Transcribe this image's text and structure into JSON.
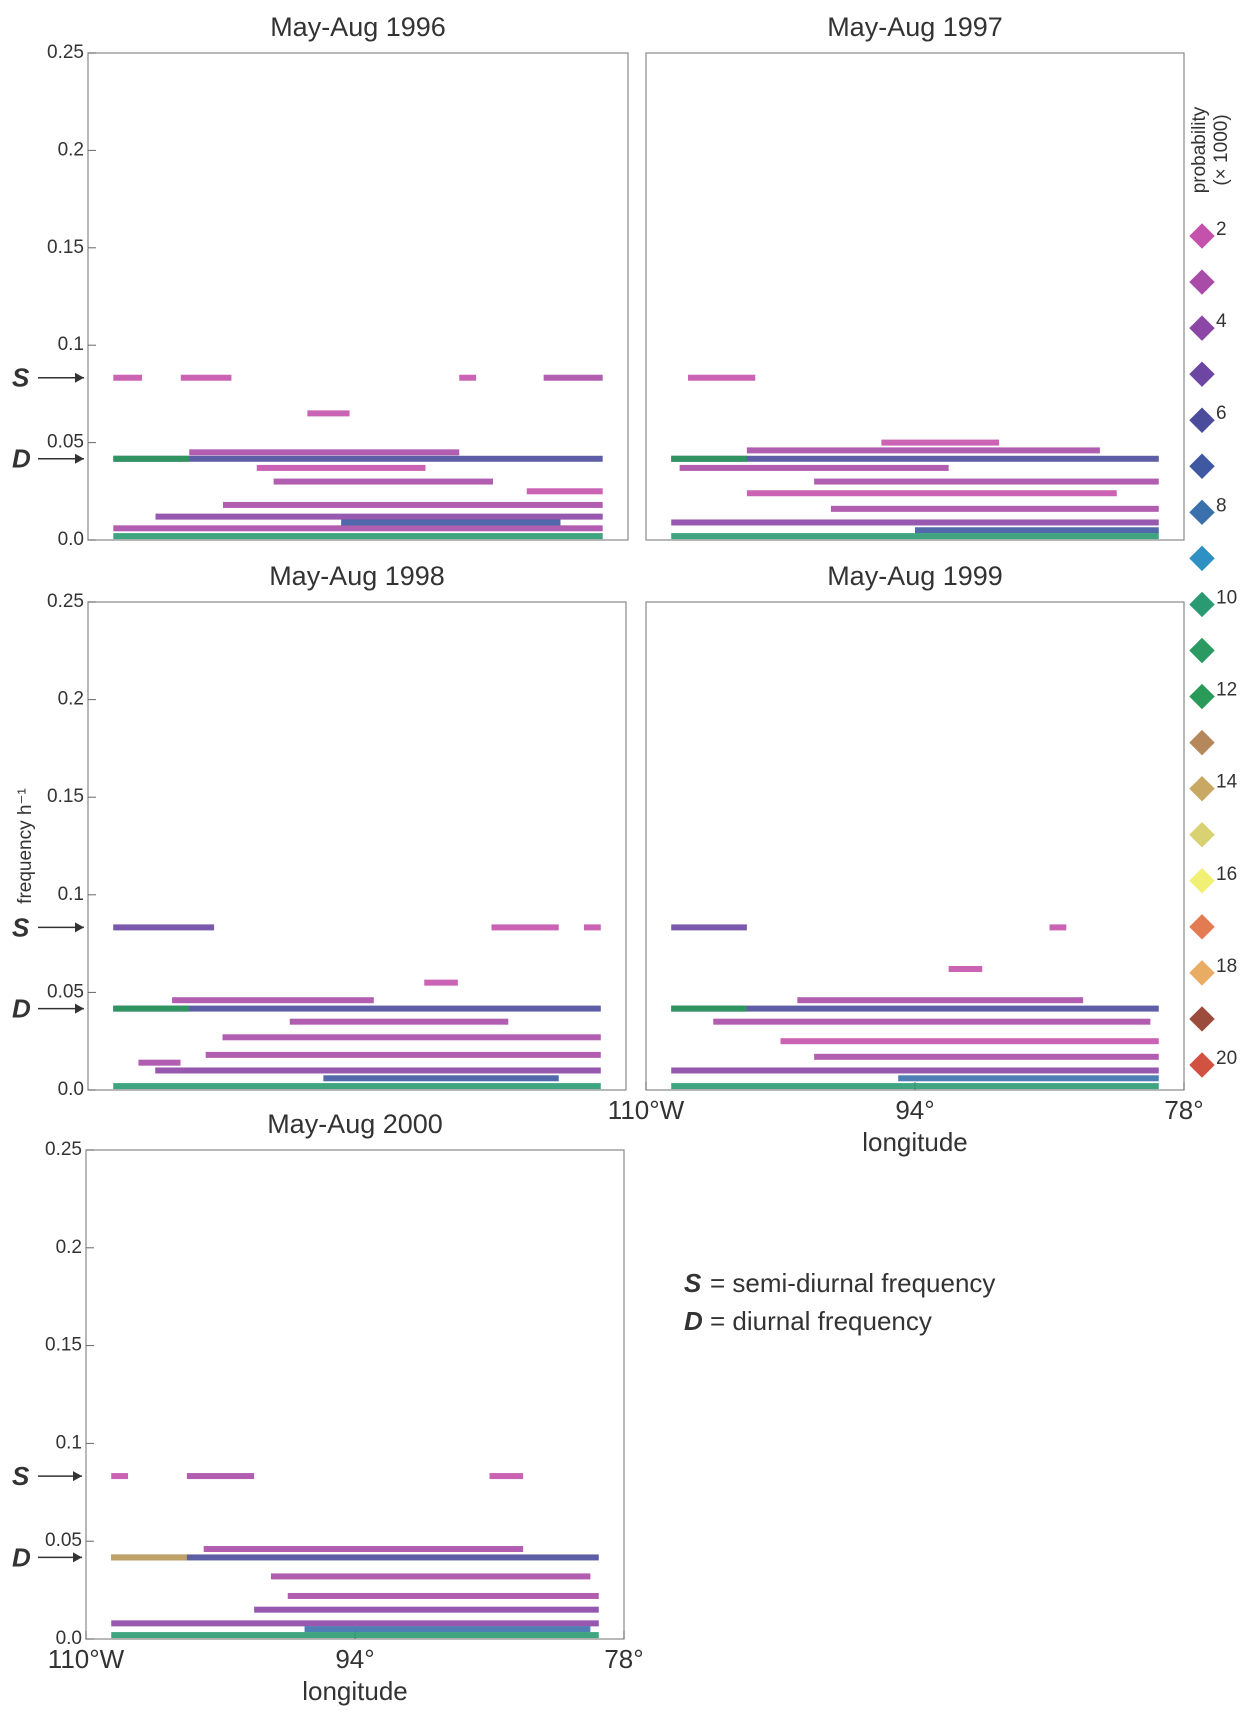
{
  "chart_data": [
    {
      "type": "segments",
      "title": "May-Aug 1996",
      "xlim": [
        -110,
        -78
      ],
      "ylim": [
        0,
        0.25
      ],
      "yticks": [
        {
          "value": 0,
          "label": "0.0"
        },
        0.05,
        0.1,
        0.15,
        0.2,
        0.25
      ],
      "annotations": [
        {
          "text": "S",
          "y": 0.0833
        },
        {
          "text": "D",
          "y": 0.0417
        }
      ],
      "segments": [
        {
          "lon": [
            -108.5,
            -106.8
          ],
          "freq": 0.0833,
          "prob": 2
        },
        {
          "lon": [
            -104.5,
            -101.5
          ],
          "freq": 0.0833,
          "prob": 2
        },
        {
          "lon": [
            -88,
            -87
          ],
          "freq": 0.0833,
          "prob": 2
        },
        {
          "lon": [
            -83,
            -79.5
          ],
          "freq": 0.0833,
          "prob": 3
        },
        {
          "lon": [
            -97,
            -94.5
          ],
          "freq": 0.065,
          "prob": 2
        },
        {
          "lon": [
            -108.5,
            -79.5
          ],
          "freq": 0.0417,
          "prob": 6
        },
        {
          "lon": [
            -108.5,
            -104
          ],
          "freq": 0.0417,
          "prob": 12
        },
        {
          "lon": [
            -104,
            -88
          ],
          "freq": 0.045,
          "prob": 3
        },
        {
          "lon": [
            -100,
            -90
          ],
          "freq": 0.037,
          "prob": 2
        },
        {
          "lon": [
            -99,
            -86
          ],
          "freq": 0.03,
          "prob": 3
        },
        {
          "lon": [
            -84,
            -79.5
          ],
          "freq": 0.025,
          "prob": 2
        },
        {
          "lon": [
            -102,
            -79.5
          ],
          "freq": 0.018,
          "prob": 3
        },
        {
          "lon": [
            -106,
            -79.5
          ],
          "freq": 0.012,
          "prob": 4
        },
        {
          "lon": [
            -108.5,
            -79.5
          ],
          "freq": 0.006,
          "prob": 3
        },
        {
          "lon": [
            -95,
            -82
          ],
          "freq": 0.009,
          "prob": 7
        },
        {
          "lon": [
            -108.5,
            -79.5
          ],
          "freq": 0.002,
          "prob": 10
        }
      ]
    },
    {
      "type": "segments",
      "title": "May-Aug 1997",
      "xlim": [
        -110,
        -78
      ],
      "ylim": [
        0,
        0.25
      ],
      "segments": [
        {
          "lon": [
            -107.5,
            -103.5
          ],
          "freq": 0.0833,
          "prob": 2
        },
        {
          "lon": [
            -108.5,
            -79.5
          ],
          "freq": 0.0417,
          "prob": 6
        },
        {
          "lon": [
            -108.5,
            -104
          ],
          "freq": 0.0417,
          "prob": 12
        },
        {
          "lon": [
            -96,
            -89
          ],
          "freq": 0.05,
          "prob": 2
        },
        {
          "lon": [
            -104,
            -83
          ],
          "freq": 0.046,
          "prob": 3
        },
        {
          "lon": [
            -108,
            -92
          ],
          "freq": 0.037,
          "prob": 3
        },
        {
          "lon": [
            -100,
            -79.5
          ],
          "freq": 0.03,
          "prob": 3
        },
        {
          "lon": [
            -104,
            -82
          ],
          "freq": 0.024,
          "prob": 2
        },
        {
          "lon": [
            -99,
            -79.5
          ],
          "freq": 0.016,
          "prob": 3
        },
        {
          "lon": [
            -108.5,
            -79.5
          ],
          "freq": 0.009,
          "prob": 4
        },
        {
          "lon": [
            -94,
            -79.5
          ],
          "freq": 0.005,
          "prob": 7
        },
        {
          "lon": [
            -108.5,
            -79.5
          ],
          "freq": 0.002,
          "prob": 10
        }
      ]
    },
    {
      "type": "segments",
      "title": "May-Aug 1998",
      "xlim": [
        -110,
        -78
      ],
      "ylim": [
        0,
        0.25
      ],
      "yticks": [
        {
          "value": 0,
          "label": "0.0"
        },
        0.05,
        0.1,
        0.15,
        0.2,
        0.25
      ],
      "ylabel": "frequency h⁻¹",
      "annotations": [
        {
          "text": "S",
          "y": 0.0833
        },
        {
          "text": "D",
          "y": 0.0417
        }
      ],
      "segments": [
        {
          "lon": [
            -108.5,
            -102.5
          ],
          "freq": 0.0833,
          "prob": 5
        },
        {
          "lon": [
            -86,
            -82
          ],
          "freq": 0.0833,
          "prob": 2
        },
        {
          "lon": [
            -80.5,
            -79.5
          ],
          "freq": 0.0833,
          "prob": 2
        },
        {
          "lon": [
            -90,
            -88
          ],
          "freq": 0.055,
          "prob": 2
        },
        {
          "lon": [
            -108.5,
            -79.5
          ],
          "freq": 0.0417,
          "prob": 6
        },
        {
          "lon": [
            -108.5,
            -104
          ],
          "freq": 0.0417,
          "prob": 12
        },
        {
          "lon": [
            -105,
            -93
          ],
          "freq": 0.046,
          "prob": 3
        },
        {
          "lon": [
            -98,
            -85
          ],
          "freq": 0.035,
          "prob": 3
        },
        {
          "lon": [
            -102,
            -79.5
          ],
          "freq": 0.027,
          "prob": 3
        },
        {
          "lon": [
            -107,
            -104.5
          ],
          "freq": 0.014,
          "prob": 3
        },
        {
          "lon": [
            -103,
            -79.5
          ],
          "freq": 0.018,
          "prob": 3
        },
        {
          "lon": [
            -106,
            -79.5
          ],
          "freq": 0.01,
          "prob": 4
        },
        {
          "lon": [
            -96,
            -82
          ],
          "freq": 0.006,
          "prob": 7
        },
        {
          "lon": [
            -108.5,
            -79.5
          ],
          "freq": 0.002,
          "prob": 10
        }
      ]
    },
    {
      "type": "segments",
      "title": "May-Aug 1999",
      "xlim": [
        -110,
        -78
      ],
      "ylim": [
        0,
        0.25
      ],
      "xticks": [
        {
          "value": -110,
          "label": "110°W"
        },
        {
          "value": -94,
          "label": "94°"
        },
        {
          "value": -78,
          "label": "78°"
        }
      ],
      "xlabel": "longitude",
      "segments": [
        {
          "lon": [
            -108.5,
            -104
          ],
          "freq": 0.0833,
          "prob": 5
        },
        {
          "lon": [
            -86,
            -85
          ],
          "freq": 0.0833,
          "prob": 2
        },
        {
          "lon": [
            -92,
            -90
          ],
          "freq": 0.062,
          "prob": 2
        },
        {
          "lon": [
            -108.5,
            -79.5
          ],
          "freq": 0.0417,
          "prob": 6
        },
        {
          "lon": [
            -108.5,
            -104
          ],
          "freq": 0.0417,
          "prob": 12
        },
        {
          "lon": [
            -101,
            -84
          ],
          "freq": 0.046,
          "prob": 3
        },
        {
          "lon": [
            -106,
            -80
          ],
          "freq": 0.035,
          "prob": 3
        },
        {
          "lon": [
            -102,
            -79.5
          ],
          "freq": 0.025,
          "prob": 2
        },
        {
          "lon": [
            -100,
            -79.5
          ],
          "freq": 0.017,
          "prob": 3
        },
        {
          "lon": [
            -108.5,
            -79.5
          ],
          "freq": 0.01,
          "prob": 4
        },
        {
          "lon": [
            -95,
            -79.5
          ],
          "freq": 0.006,
          "prob": 8
        },
        {
          "lon": [
            -108.5,
            -79.5
          ],
          "freq": 0.002,
          "prob": 10
        }
      ]
    },
    {
      "type": "segments",
      "title": "May-Aug 2000",
      "xlim": [
        -110,
        -78
      ],
      "ylim": [
        0,
        0.25
      ],
      "yticks": [
        {
          "value": 0,
          "label": "0.0"
        },
        0.05,
        0.1,
        0.15,
        0.2,
        0.25
      ],
      "xticks": [
        {
          "value": -110,
          "label": "110°W"
        },
        {
          "value": -94,
          "label": "94°"
        },
        {
          "value": -78,
          "label": "78°"
        }
      ],
      "xlabel": "longitude",
      "annotations": [
        {
          "text": "S",
          "y": 0.0833
        },
        {
          "text": "D",
          "y": 0.0417
        }
      ],
      "segments": [
        {
          "lon": [
            -108.5,
            -107.5
          ],
          "freq": 0.0833,
          "prob": 2
        },
        {
          "lon": [
            -104,
            -100
          ],
          "freq": 0.0833,
          "prob": 3
        },
        {
          "lon": [
            -86,
            -84
          ],
          "freq": 0.0833,
          "prob": 2
        },
        {
          "lon": [
            -108.5,
            -79.5
          ],
          "freq": 0.0417,
          "prob": 6
        },
        {
          "lon": [
            -108.5,
            -104
          ],
          "freq": 0.0417,
          "prob": 14
        },
        {
          "lon": [
            -103,
            -84
          ],
          "freq": 0.046,
          "prob": 3
        },
        {
          "lon": [
            -99,
            -80
          ],
          "freq": 0.032,
          "prob": 3
        },
        {
          "lon": [
            -98,
            -79.5
          ],
          "freq": 0.022,
          "prob": 3
        },
        {
          "lon": [
            -100,
            -79.5
          ],
          "freq": 0.015,
          "prob": 4
        },
        {
          "lon": [
            -108.5,
            -79.5
          ],
          "freq": 0.008,
          "prob": 4
        },
        {
          "lon": [
            -97,
            -80
          ],
          "freq": 0.005,
          "prob": 8
        },
        {
          "lon": [
            -108.5,
            -79.5
          ],
          "freq": 0.002,
          "prob": 10
        }
      ]
    }
  ],
  "colorbar": {
    "title": [
      "probability",
      "(× 1000)"
    ],
    "levels": [
      2,
      3,
      4,
      5,
      6,
      7,
      8,
      9,
      10,
      11,
      12,
      13,
      14,
      15,
      16,
      17,
      18,
      19,
      20
    ],
    "colors": [
      "#c452ac",
      "#a84ca8",
      "#8c46a6",
      "#6c46a2",
      "#4c4c9c",
      "#3e58a2",
      "#3a70ac",
      "#2f90c4",
      "#2a9a72",
      "#2a9a62",
      "#2a9a58",
      "#b4885a",
      "#c8a862",
      "#d8d272",
      "#f2f074",
      "#e27a52",
      "#e8ac62",
      "#9c4c3c",
      "#d25242"
    ],
    "ticks": [
      2,
      4,
      6,
      8,
      10,
      12,
      14,
      16,
      18,
      20
    ]
  },
  "notes": [
    {
      "symbol": "S",
      "text": "= semi-diurnal frequency"
    },
    {
      "symbol": "D",
      "text": "= diurnal frequency"
    }
  ]
}
